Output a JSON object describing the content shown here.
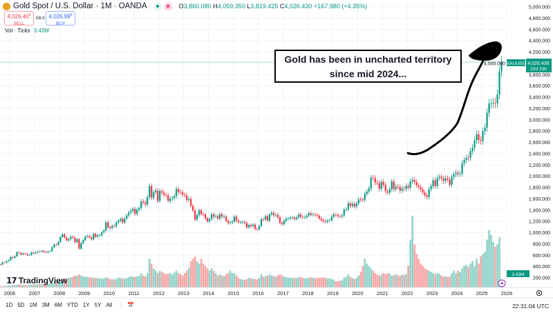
{
  "header": {
    "title": "Gold Spot / U.S. Dollar · 1M · OANDA",
    "open_label": "O",
    "open": "3,860.080",
    "high_label": "H",
    "high": "4,059.350",
    "low_label": "L",
    "low": "3,819.425",
    "close_label": "C",
    "close": "4,026.430",
    "change": "+167.980 (+4.35%)"
  },
  "trade": {
    "sell_price": "4,026.40",
    "sell_sup": "0",
    "sell_label": "SELL",
    "spread": "59.0",
    "buy_price": "4,026.99",
    "buy_sup": "0",
    "buy_label": "BUY"
  },
  "volume_legend": {
    "label": "Vol · Ticks",
    "value": "3.43M"
  },
  "annotation": {
    "line1": "Gold has been in uncharted territory",
    "line2": "since mid 2024..."
  },
  "price_badge": {
    "symbol": "XAUUSD",
    "price": "4,026.430",
    "countdown": "22d 23h"
  },
  "volume_badge": "3.43M",
  "logo": "TradingView",
  "toolbar": {
    "ranges": [
      "1D",
      "5D",
      "1M",
      "3M",
      "6M",
      "YTD",
      "1Y",
      "5Y",
      "All"
    ],
    "time": "22:31:04 UTC"
  },
  "colors": {
    "up": "#089981",
    "down": "#f23645",
    "up_vol": "#8fd3c8",
    "down_vol": "#f7a6a6"
  },
  "chart_data": {
    "type": "candlestick",
    "interval": "1M",
    "start": "2005-08",
    "ylim": [
      200,
      5000
    ],
    "y_ticks": [
      "5,000.000",
      "4,800.000",
      "4,600.000",
      "4,400.000",
      "4,200.000",
      "4,000.000",
      "3,800.000",
      "3,600.000",
      "3,400.000",
      "3,200.000",
      "3,000.000",
      "2,800.000",
      "2,600.000",
      "2,400.000",
      "2,200.000",
      "2,000.000",
      "1,800.000",
      "1,600.000",
      "1,400.000",
      "1,200.000",
      "1,000.000",
      "800.000",
      "600.000",
      "400.000",
      "200.000"
    ],
    "x_ticks": [
      "2006",
      "2007",
      "2008",
      "2009",
      "2010",
      "2011",
      "2012",
      "2013",
      "2014",
      "2015",
      "2016",
      "2017",
      "2018",
      "2019",
      "2020",
      "2021",
      "2022",
      "2023",
      "2024",
      "2025",
      "2026"
    ],
    "open_first": 440,
    "closes": [
      433,
      473,
      470,
      495,
      513,
      569,
      556,
      582,
      654,
      643,
      613,
      632,
      624,
      599,
      604,
      646,
      632,
      650,
      665,
      662,
      679,
      659,
      650,
      665,
      673,
      743,
      789,
      783,
      834,
      923,
      972,
      916,
      863,
      887,
      928,
      913,
      833,
      884,
      717,
      815,
      869,
      928,
      942,
      916,
      883,
      979,
      927,
      954,
      955,
      1008,
      1040,
      1182,
      1096,
      1081,
      1118,
      1113,
      1179,
      1212,
      1244,
      1181,
      1248,
      1307,
      1357,
      1386,
      1421,
      1332,
      1409,
      1439,
      1556,
      1536,
      1500,
      1628,
      1826,
      1620,
      1714,
      1746,
      1564,
      1737,
      1710,
      1669,
      1664,
      1562,
      1604,
      1614,
      1648,
      1773,
      1719,
      1713,
      1675,
      1663,
      1579,
      1596,
      1476,
      1393,
      1234,
      1313,
      1396,
      1327,
      1323,
      1253,
      1202,
      1240,
      1326,
      1284,
      1296,
      1250,
      1327,
      1282,
      1287,
      1210,
      1171,
      1183,
      1199,
      1284,
      1212,
      1183,
      1184,
      1190,
      1172,
      1095,
      1134,
      1115,
      1142,
      1065,
      1061,
      1118,
      1238,
      1233,
      1292,
      1215,
      1321,
      1351,
      1309,
      1316,
      1273,
      1173,
      1151,
      1211,
      1249,
      1249,
      1268,
      1268,
      1242,
      1269,
      1322,
      1280,
      1271,
      1275,
      1303,
      1345,
      1318,
      1325,
      1315,
      1299,
      1253,
      1224,
      1202,
      1192,
      1215,
      1222,
      1282,
      1321,
      1313,
      1292,
      1283,
      1305,
      1409,
      1413,
      1520,
      1472,
      1511,
      1464,
      1517,
      1589,
      1585,
      1577,
      1686,
      1730,
      1781,
      1975,
      1967,
      1886,
      1878,
      1776,
      1898,
      1847,
      1734,
      1708,
      1769,
      1907,
      1770,
      1814,
      1813,
      1743,
      1783,
      1774,
      1829,
      1796,
      1909,
      1937,
      1897,
      1837,
      1807,
      1766,
      1711,
      1661,
      1633,
      1768,
      1824,
      1928,
      1827,
      1969,
      1990,
      1962,
      1919,
      1965,
      1940,
      1849,
      1983,
      2036,
      2063,
      2039,
      2044,
      2230,
      2286,
      2327,
      2326,
      2447,
      2503,
      2635,
      2744,
      2643,
      2625,
      2798,
      2858,
      3124,
      3289,
      3289,
      3303,
      3290,
      3448,
      3858,
      4026
    ],
    "volume_millions": [
      0.5,
      0.6,
      0.6,
      0.7,
      0.8,
      0.9,
      1,
      1,
      1.2,
      1.3,
      1.2,
      1.1,
      1,
      1,
      1.1,
      1.2,
      1.2,
      1.3,
      1.3,
      1.4,
      1.3,
      1.4,
      1.5,
      1.5,
      1.6,
      1.8,
      2,
      2.2,
      2.4,
      3,
      3.5,
      3.8,
      3.6,
      4,
      4.2,
      4.5,
      5,
      5,
      5.5,
      5,
      4.6,
      4.5,
      4.4,
      4.3,
      4.2,
      4.1,
      4,
      3.9,
      3.8,
      3.7,
      3.8,
      4.2,
      4,
      3.5,
      3.4,
      3.3,
      3.6,
      4.2,
      4,
      3.8,
      3.6,
      3.9,
      4.3,
      4.7,
      4.4,
      4.5,
      4.6,
      4.8,
      6,
      5,
      4.6,
      6,
      12,
      10,
      8,
      7,
      6,
      7,
      6.5,
      6,
      5.5,
      5.8,
      6,
      5.5,
      6.2,
      7,
      6,
      5.5,
      5,
      6,
      7,
      8,
      11,
      12,
      13,
      11,
      10,
      12,
      10,
      9,
      8,
      7,
      8,
      7,
      6,
      5,
      5.5,
      5,
      4.8,
      5.5,
      6,
      7,
      6,
      6,
      5,
      4,
      3.5,
      3.3,
      3.2,
      3.5,
      4,
      3.8,
      3.6,
      3.5,
      3.4,
      4,
      5.5,
      4.5,
      4.8,
      5,
      5.5,
      5,
      4.8,
      4.5,
      5,
      5.5,
      5,
      4.5,
      4.3,
      4.2,
      4,
      4.1,
      4,
      3.8,
      4.2,
      4.4,
      4,
      3.8,
      3.9,
      4,
      4.3,
      4,
      3.9,
      3.8,
      4,
      4.1,
      4.2,
      4,
      3.8,
      3.7,
      3.6,
      3.2,
      2.6,
      2.7,
      2.8,
      3,
      4,
      4.5,
      5.5,
      4.5,
      3.9,
      3.5,
      4,
      5,
      6.5,
      9,
      12,
      10,
      9,
      8,
      7,
      6,
      5.5,
      5,
      5.5,
      6,
      5.5,
      6,
      5.8,
      5,
      5.2,
      5.6,
      5,
      4.8,
      5.4,
      5.2,
      5.6,
      9,
      20,
      30,
      18,
      14,
      12,
      10,
      9,
      8,
      7.5,
      7,
      6.5,
      6,
      5.5,
      6,
      5.8,
      5,
      4.5,
      4.8,
      4.4,
      4.6,
      6,
      7,
      6,
      7,
      6.5,
      8,
      9,
      9.5,
      8.6,
      10,
      11,
      9,
      12,
      10,
      13,
      14,
      15,
      20,
      24,
      22,
      19,
      17,
      18,
      21,
      3.43
    ]
  }
}
